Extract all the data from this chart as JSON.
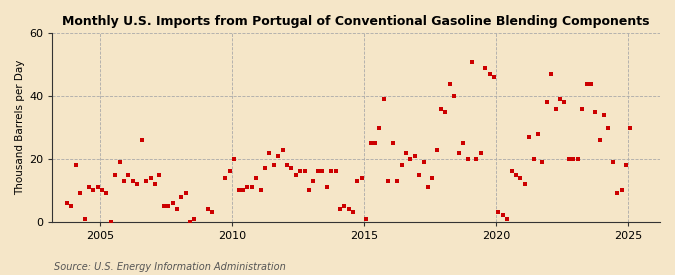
{
  "title": "Monthly U.S. Imports from Portugal of Conventional Gasoline Blending Components",
  "ylabel": "Thousand Barrels per Day",
  "source": "Source: U.S. Energy Information Administration",
  "background_color": "#f5e6c8",
  "plot_bg_color": "#f5e6c8",
  "marker_color": "#cc0000",
  "marker_size": 5,
  "ylim": [
    0,
    60
  ],
  "yticks": [
    0,
    20,
    40,
    60
  ],
  "xlim_start": 2003.2,
  "xlim_end": 2026.2,
  "xticks": [
    2005,
    2010,
    2015,
    2020,
    2025
  ],
  "grid_color": "#aaaaaa",
  "vline_color": "#aaaaaa",
  "spine_color": "#333333",
  "data": [
    [
      2003.75,
      6
    ],
    [
      2003.92,
      5
    ],
    [
      2004.08,
      18
    ],
    [
      2004.25,
      9
    ],
    [
      2004.42,
      1
    ],
    [
      2004.58,
      11
    ],
    [
      2004.75,
      10
    ],
    [
      2004.92,
      11
    ],
    [
      2005.08,
      10
    ],
    [
      2005.25,
      9
    ],
    [
      2005.42,
      0
    ],
    [
      2005.58,
      15
    ],
    [
      2005.75,
      19
    ],
    [
      2005.92,
      13
    ],
    [
      2006.08,
      15
    ],
    [
      2006.25,
      13
    ],
    [
      2006.42,
      12
    ],
    [
      2006.58,
      26
    ],
    [
      2006.75,
      13
    ],
    [
      2006.92,
      14
    ],
    [
      2007.08,
      12
    ],
    [
      2007.25,
      15
    ],
    [
      2007.42,
      5
    ],
    [
      2007.58,
      5
    ],
    [
      2007.75,
      6
    ],
    [
      2007.92,
      4
    ],
    [
      2008.08,
      8
    ],
    [
      2008.25,
      9
    ],
    [
      2008.42,
      0
    ],
    [
      2008.58,
      1
    ],
    [
      2009.08,
      4
    ],
    [
      2009.25,
      3
    ],
    [
      2009.75,
      14
    ],
    [
      2009.92,
      16
    ],
    [
      2010.08,
      20
    ],
    [
      2010.25,
      10
    ],
    [
      2010.42,
      10
    ],
    [
      2010.58,
      11
    ],
    [
      2010.75,
      11
    ],
    [
      2010.92,
      14
    ],
    [
      2011.08,
      10
    ],
    [
      2011.25,
      17
    ],
    [
      2011.42,
      22
    ],
    [
      2011.58,
      18
    ],
    [
      2011.75,
      21
    ],
    [
      2011.92,
      23
    ],
    [
      2012.08,
      18
    ],
    [
      2012.25,
      17
    ],
    [
      2012.42,
      15
    ],
    [
      2012.58,
      16
    ],
    [
      2012.75,
      16
    ],
    [
      2012.92,
      10
    ],
    [
      2013.08,
      13
    ],
    [
      2013.25,
      16
    ],
    [
      2013.42,
      16
    ],
    [
      2013.58,
      11
    ],
    [
      2013.75,
      16
    ],
    [
      2013.92,
      16
    ],
    [
      2014.08,
      4
    ],
    [
      2014.25,
      5
    ],
    [
      2014.42,
      4
    ],
    [
      2014.58,
      3
    ],
    [
      2014.75,
      13
    ],
    [
      2014.92,
      14
    ],
    [
      2015.08,
      1
    ],
    [
      2015.25,
      25
    ],
    [
      2015.42,
      25
    ],
    [
      2015.58,
      30
    ],
    [
      2015.75,
      39
    ],
    [
      2015.92,
      13
    ],
    [
      2016.08,
      25
    ],
    [
      2016.25,
      13
    ],
    [
      2016.42,
      18
    ],
    [
      2016.58,
      22
    ],
    [
      2016.75,
      20
    ],
    [
      2016.92,
      21
    ],
    [
      2017.08,
      15
    ],
    [
      2017.25,
      19
    ],
    [
      2017.42,
      11
    ],
    [
      2017.58,
      14
    ],
    [
      2017.75,
      23
    ],
    [
      2017.92,
      36
    ],
    [
      2018.08,
      35
    ],
    [
      2018.25,
      44
    ],
    [
      2018.42,
      40
    ],
    [
      2018.58,
      22
    ],
    [
      2018.75,
      25
    ],
    [
      2018.92,
      20
    ],
    [
      2019.08,
      51
    ],
    [
      2019.25,
      20
    ],
    [
      2019.42,
      22
    ],
    [
      2019.58,
      49
    ],
    [
      2019.75,
      47
    ],
    [
      2019.92,
      46
    ],
    [
      2020.08,
      3
    ],
    [
      2020.25,
      2
    ],
    [
      2020.42,
      1
    ],
    [
      2020.58,
      16
    ],
    [
      2020.75,
      15
    ],
    [
      2020.92,
      14
    ],
    [
      2021.08,
      12
    ],
    [
      2021.25,
      27
    ],
    [
      2021.42,
      20
    ],
    [
      2021.58,
      28
    ],
    [
      2021.75,
      19
    ],
    [
      2021.92,
      38
    ],
    [
      2022.08,
      47
    ],
    [
      2022.25,
      36
    ],
    [
      2022.42,
      39
    ],
    [
      2022.58,
      38
    ],
    [
      2022.75,
      20
    ],
    [
      2022.92,
      20
    ],
    [
      2023.08,
      20
    ],
    [
      2023.25,
      36
    ],
    [
      2023.42,
      44
    ],
    [
      2023.58,
      44
    ],
    [
      2023.75,
      35
    ],
    [
      2023.92,
      26
    ],
    [
      2024.08,
      34
    ],
    [
      2024.25,
      30
    ],
    [
      2024.42,
      19
    ],
    [
      2024.58,
      9
    ],
    [
      2024.75,
      10
    ],
    [
      2024.92,
      18
    ],
    [
      2025.08,
      30
    ]
  ]
}
